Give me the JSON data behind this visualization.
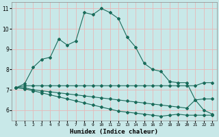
{
  "xlabel": "Humidex (Indice chaleur)",
  "bg_color": "#c8e8e8",
  "grid_color": "#e8b8b8",
  "line_color": "#1a6b5a",
  "xlim": [
    0,
    23
  ],
  "ylim": [
    5.5,
    11.3
  ],
  "yticks": [
    6,
    7,
    8,
    9,
    10,
    11
  ],
  "xticks": [
    0,
    1,
    2,
    3,
    4,
    5,
    6,
    7,
    8,
    9,
    10,
    11,
    12,
    13,
    14,
    15,
    16,
    17,
    18,
    19,
    20,
    21,
    22,
    23
  ],
  "line1_x": [
    0,
    1,
    2,
    3,
    4,
    5,
    6,
    7,
    8,
    9,
    10,
    11,
    12,
    13,
    14,
    15,
    16,
    17,
    18,
    19,
    20,
    21,
    22,
    23
  ],
  "line1_y": [
    7.1,
    7.3,
    8.1,
    8.5,
    8.6,
    9.5,
    9.2,
    9.4,
    10.8,
    10.7,
    11.0,
    10.8,
    10.5,
    9.6,
    9.1,
    8.3,
    8.0,
    7.9,
    7.4,
    7.35,
    7.35,
    6.5,
    6.0,
    5.8
  ],
  "line2_x": [
    0,
    1,
    2,
    3,
    4,
    5,
    6,
    7,
    8,
    9,
    10,
    11,
    12,
    13,
    14,
    15,
    16,
    17,
    18,
    19,
    20,
    21,
    22,
    23
  ],
  "line2_y": [
    7.1,
    7.2,
    7.2,
    7.2,
    7.2,
    7.2,
    7.2,
    7.2,
    7.2,
    7.2,
    7.2,
    7.2,
    7.2,
    7.2,
    7.2,
    7.2,
    7.2,
    7.2,
    7.2,
    7.2,
    7.2,
    7.2,
    7.35,
    7.35
  ],
  "line3_x": [
    0,
    1,
    2,
    3,
    4,
    5,
    6,
    7,
    8,
    9,
    10,
    11,
    12,
    13,
    14,
    15,
    16,
    17,
    18,
    19,
    20,
    21,
    22,
    23
  ],
  "line3_y": [
    7.1,
    7.1,
    7.0,
    6.95,
    6.9,
    6.85,
    6.8,
    6.75,
    6.7,
    6.65,
    6.6,
    6.55,
    6.5,
    6.45,
    6.4,
    6.35,
    6.3,
    6.25,
    6.2,
    6.15,
    6.1,
    6.5,
    6.55,
    6.55
  ],
  "line4_x": [
    0,
    1,
    2,
    3,
    4,
    5,
    6,
    7,
    8,
    9,
    10,
    11,
    12,
    13,
    14,
    15,
    16,
    17,
    18,
    19,
    20,
    21,
    22,
    23
  ],
  "line4_y": [
    7.1,
    7.05,
    6.95,
    6.85,
    6.75,
    6.65,
    6.55,
    6.45,
    6.35,
    6.25,
    6.15,
    6.05,
    5.95,
    5.9,
    5.85,
    5.8,
    5.75,
    5.7,
    5.75,
    5.8,
    5.75,
    5.75,
    5.75,
    5.75
  ]
}
